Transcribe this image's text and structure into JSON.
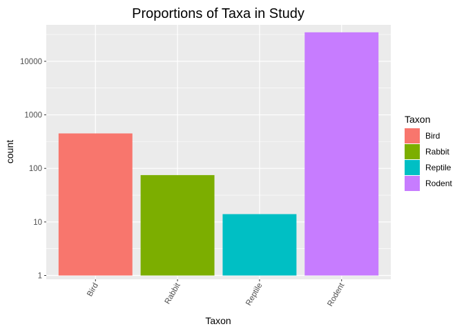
{
  "chart_data": {
    "type": "bar",
    "title": "Proportions of Taxa in Study",
    "xlabel": "Taxon",
    "ylabel": "count",
    "y_scale": "log10",
    "ylim": [
      0.85,
      48000
    ],
    "y_ticks": [
      1,
      10,
      100,
      1000,
      10000
    ],
    "y_tick_labels": [
      "1",
      "10",
      "100",
      "1000",
      "10000"
    ],
    "categories": [
      "Bird",
      "Rabbit",
      "Reptile",
      "Rodent"
    ],
    "values": [
      450,
      75,
      14,
      34786
    ],
    "colors": [
      "#F8766D",
      "#7CAE00",
      "#00BFC4",
      "#C77CFF"
    ],
    "x_tick_rotation": 60,
    "grid": true,
    "legend": {
      "title": "Taxon",
      "placement": "right",
      "items": [
        "Bird",
        "Rabbit",
        "Reptile",
        "Rodent"
      ]
    },
    "panel_background": "#EBEBEB"
  }
}
